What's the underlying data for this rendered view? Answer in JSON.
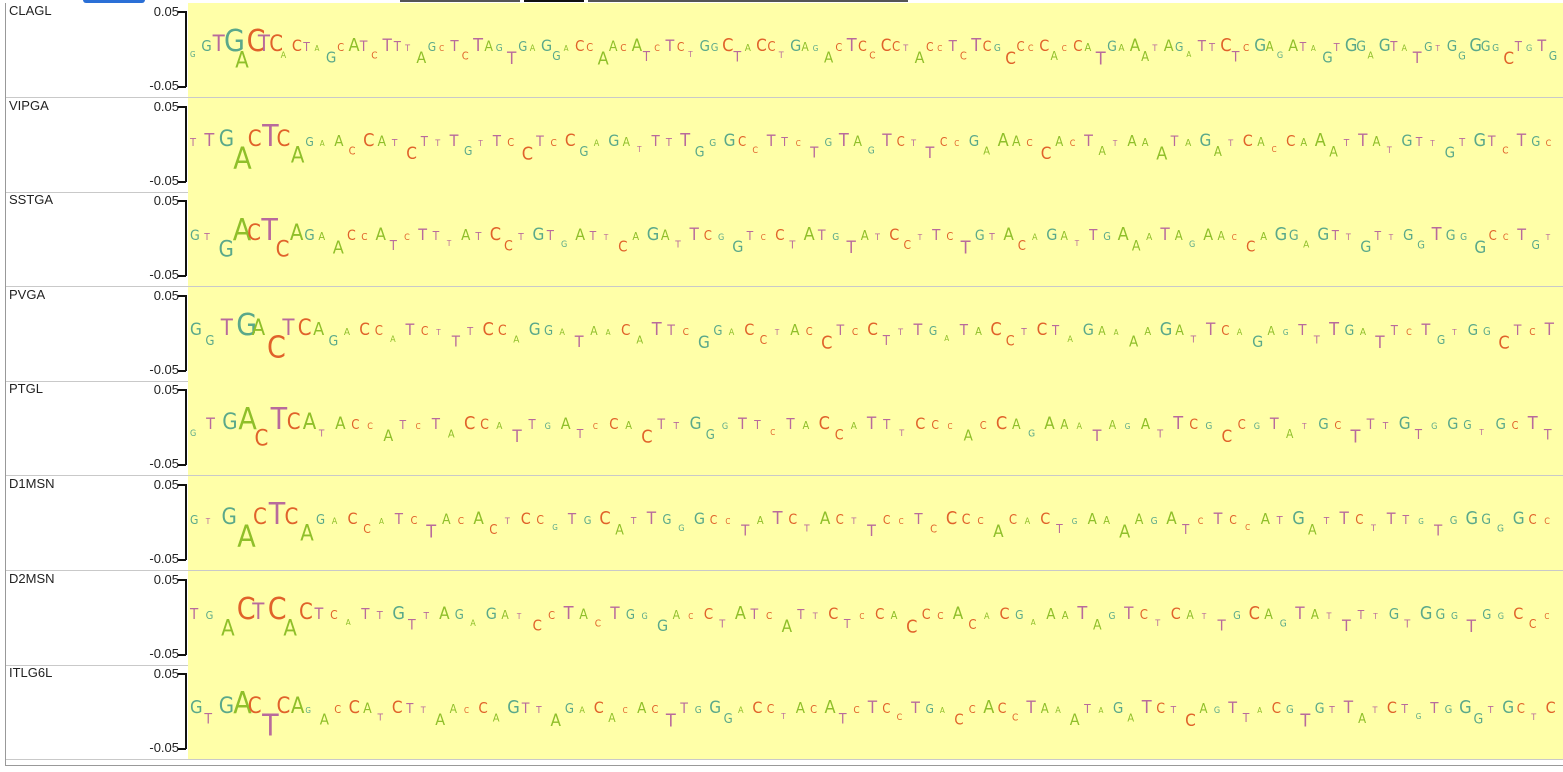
{
  "tracks": [
    {
      "label": "CLAGL",
      "ymax": "0.05",
      "ymin": "-0.05"
    },
    {
      "label": "VIPGA",
      "ymax": "0.05",
      "ymin": "-0.05"
    },
    {
      "label": "SSTGA",
      "ymax": "0.05",
      "ymin": "-0.05"
    },
    {
      "label": "PVGA",
      "ymax": "0.05",
      "ymin": "-0.05"
    },
    {
      "label": "PTGL",
      "ymax": "0.05",
      "ymin": "-0.05"
    },
    {
      "label": "D1MSN",
      "ymax": "0.05",
      "ymin": "-0.05"
    },
    {
      "label": "D2MSN",
      "ymax": "0.05",
      "ymin": "-0.05"
    },
    {
      "label": "ITLG6L",
      "ymax": "0.05",
      "ymin": "-0.05"
    }
  ],
  "colors": {
    "plot_background": "#ffffa8",
    "A": "#8fbf2a",
    "C": "#e0622a",
    "G": "#5aa88a",
    "T": "#b86a9c"
  },
  "logo_sequences": [
    "GGTGACTCACTAGCATCTTTAGCTCTAGTGAGGACCAACATCTCTGGCTACCTGAGACTCCCCTACCTCTCGCCCCACCATGAAATAGATTCTCGAGATAGTGGAGTATGTGGGGGCTGTG",
    "TTGACTCAGAACCATCTTTGTTCCTCCGAGATTTTGGGCCTTCTGTAGTCTTCCGAAACCACTATAAATAGATCACCAAATTATGTTGTGTCTGC",
    "GTGACTCAGAACCATCTTTATCCTGTGATTCAGATTCGGTCCTATGTATCCTTCTGTACAGATTGAAATAGAACCAGGAGTTGTTGGTGGGCCTGT",
    "GGTGACTCAGACCATCTTTCCAGGATAACATTCGGACCTACCTCCTTTGATACCTCTAGAAAAGATTCAGAGTTTGATTCTGTGGCTCT",
    "GTGACTCATACCATCTACCATTGATCCACTTGGGTTCTACCATTTCCCACCAGAAATAGATTCGCCGTATGCTTTGTGGGTGCTT",
    "GTGACTCAGACCATCTACACTCCGTGCATTGGGCCTATCTACTTCCTCCCCACACTGAAAAGATCTCCATGATTCTTTGTGGGGGCC",
    "TGACTCACTCATTGTTAGAGATCCTACTGGGACCTATCATTCTCCACCCACACGAAATAGTCTCATTGCAGTATTTTGTGGGTGGCCC",
    "GTGACTCAGACCATCTTAACCAGTTAGACACACTTGGGACCTACATCTCCTGACCACCTAAATAGATCTCAGTTACGTGTTATCTGTGGGTGCTC"
  ]
}
